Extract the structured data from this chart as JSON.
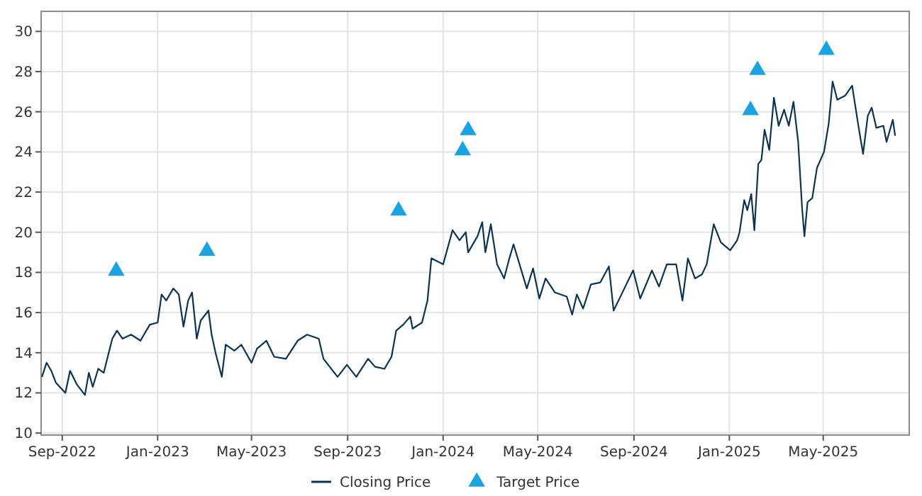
{
  "chart_data": {
    "type": "line",
    "xlim": [
      "2022-08-05",
      "2025-08-19"
    ],
    "ylim": [
      9.9,
      31
    ],
    "xticks": [
      {
        "value": "2022-09-01",
        "label": "Sep-2022"
      },
      {
        "value": "2023-01-01",
        "label": "Jan-2023"
      },
      {
        "value": "2023-05-01",
        "label": "May-2023"
      },
      {
        "value": "2023-09-01",
        "label": "Sep-2023"
      },
      {
        "value": "2024-01-01",
        "label": "Jan-2024"
      },
      {
        "value": "2024-05-01",
        "label": "May-2024"
      },
      {
        "value": "2024-09-01",
        "label": "Sep-2024"
      },
      {
        "value": "2025-01-01",
        "label": "Jan-2025"
      },
      {
        "value": "2025-05-01",
        "label": "May-2025"
      }
    ],
    "yticks": [
      10,
      12,
      14,
      16,
      18,
      20,
      22,
      24,
      26,
      28,
      30
    ],
    "grid": true,
    "legend": "bottom",
    "series": [
      {
        "name": "Closing Price",
        "color": "#0b3452",
        "line_style": "solid",
        "marker": "none",
        "x": [
          "2022-08-06",
          "2022-08-12",
          "2022-08-18",
          "2022-08-24",
          "2022-09-05",
          "2022-09-11",
          "2022-09-20",
          "2022-09-30",
          "2022-10-05",
          "2022-10-10",
          "2022-10-17",
          "2022-10-24",
          "2022-11-04",
          "2022-11-10",
          "2022-11-17",
          "2022-11-28",
          "2022-12-10",
          "2022-12-22",
          "2023-01-01",
          "2023-01-06",
          "2023-01-12",
          "2023-01-21",
          "2023-01-28",
          "2023-02-03",
          "2023-02-09",
          "2023-02-14",
          "2023-02-20",
          "2023-02-25",
          "2023-03-07",
          "2023-03-11",
          "2023-03-16",
          "2023-03-24",
          "2023-03-29",
          "2023-04-09",
          "2023-04-18",
          "2023-05-01",
          "2023-05-08",
          "2023-05-20",
          "2023-05-30",
          "2023-06-14",
          "2023-06-29",
          "2023-07-11",
          "2023-07-26",
          "2023-08-01",
          "2023-08-19",
          "2023-08-31",
          "2023-09-12",
          "2023-09-27",
          "2023-10-06",
          "2023-10-18",
          "2023-10-27",
          "2023-11-02",
          "2023-11-11",
          "2023-11-20",
          "2023-11-23",
          "2023-12-05",
          "2023-12-12",
          "2023-12-17",
          "2024-01-01",
          "2024-01-13",
          "2024-01-22",
          "2024-01-30",
          "2024-02-02",
          "2024-02-14",
          "2024-02-20",
          "2024-02-24",
          "2024-03-02",
          "2024-03-10",
          "2024-03-19",
          "2024-03-25",
          "2024-03-31",
          "2024-04-17",
          "2024-04-25",
          "2024-05-03",
          "2024-05-11",
          "2024-05-23",
          "2024-06-07",
          "2024-06-14",
          "2024-06-20",
          "2024-06-28",
          "2024-07-08",
          "2024-07-20",
          "2024-07-31",
          "2024-08-06",
          "2024-08-16",
          "2024-08-31",
          "2024-09-09",
          "2024-09-24",
          "2024-10-03",
          "2024-10-13",
          "2024-10-25",
          "2024-11-02",
          "2024-11-09",
          "2024-11-18",
          "2024-11-27",
          "2024-12-03",
          "2024-12-12",
          "2024-12-21",
          "2025-01-02",
          "2025-01-11",
          "2025-01-14",
          "2025-01-20",
          "2025-01-24",
          "2025-01-29",
          "2025-02-02",
          "2025-02-07",
          "2025-02-11",
          "2025-02-15",
          "2025-02-21",
          "2025-02-27",
          "2025-03-05",
          "2025-03-12",
          "2025-03-18",
          "2025-03-24",
          "2025-03-30",
          "2025-04-04",
          "2025-04-07",
          "2025-04-11",
          "2025-04-17",
          "2025-04-23",
          "2025-05-02",
          "2025-05-08",
          "2025-05-13",
          "2025-05-19",
          "2025-05-29",
          "2025-06-07",
          "2025-06-15",
          "2025-06-21",
          "2025-06-27",
          "2025-07-02",
          "2025-07-08",
          "2025-07-17",
          "2025-07-21",
          "2025-07-29",
          "2025-08-01"
        ],
        "values": [
          12.8,
          13.5,
          13.1,
          12.5,
          12.0,
          13.1,
          12.4,
          11.9,
          13.0,
          12.3,
          13.2,
          13.0,
          14.7,
          15.1,
          14.7,
          14.9,
          14.6,
          15.4,
          15.5,
          16.9,
          16.6,
          17.2,
          16.9,
          15.3,
          16.6,
          17.0,
          14.7,
          15.6,
          16.1,
          14.9,
          14.0,
          12.8,
          14.4,
          14.1,
          14.4,
          13.5,
          14.2,
          14.6,
          13.8,
          13.7,
          14.6,
          14.9,
          14.7,
          13.7,
          12.8,
          13.4,
          12.8,
          13.7,
          13.3,
          13.2,
          13.8,
          15.1,
          15.4,
          15.8,
          15.2,
          15.5,
          16.6,
          18.7,
          18.4,
          20.1,
          19.6,
          20.0,
          19.0,
          19.8,
          20.5,
          19.0,
          20.4,
          18.4,
          17.7,
          18.6,
          19.4,
          17.2,
          18.2,
          16.7,
          17.7,
          17.0,
          16.8,
          15.9,
          16.9,
          16.2,
          17.4,
          17.5,
          18.3,
          16.1,
          16.9,
          18.1,
          16.7,
          18.1,
          17.3,
          18.4,
          18.4,
          16.6,
          18.7,
          17.7,
          17.9,
          18.4,
          20.4,
          19.5,
          19.1,
          19.6,
          20.0,
          21.6,
          21.1,
          21.9,
          20.1,
          23.4,
          23.6,
          25.1,
          24.1,
          26.7,
          25.3,
          26.1,
          25.3,
          26.5,
          24.5,
          21.2,
          19.8,
          21.5,
          21.7,
          23.2,
          24.0,
          25.4,
          27.5,
          26.6,
          26.8,
          27.3,
          25.3,
          23.9,
          25.8,
          26.2,
          25.2,
          25.3,
          24.5,
          25.6,
          24.8
        ]
      },
      {
        "name": "Target Price",
        "type": "scatter",
        "color": "#1aa3e0",
        "marker": "triangle",
        "x": [
          "2022-11-09",
          "2023-03-05",
          "2023-11-05",
          "2024-01-26",
          "2024-02-02",
          "2025-01-28",
          "2025-02-06",
          "2025-05-05"
        ],
        "values": [
          18,
          19,
          21,
          24,
          25,
          26,
          28,
          29
        ]
      }
    ]
  }
}
